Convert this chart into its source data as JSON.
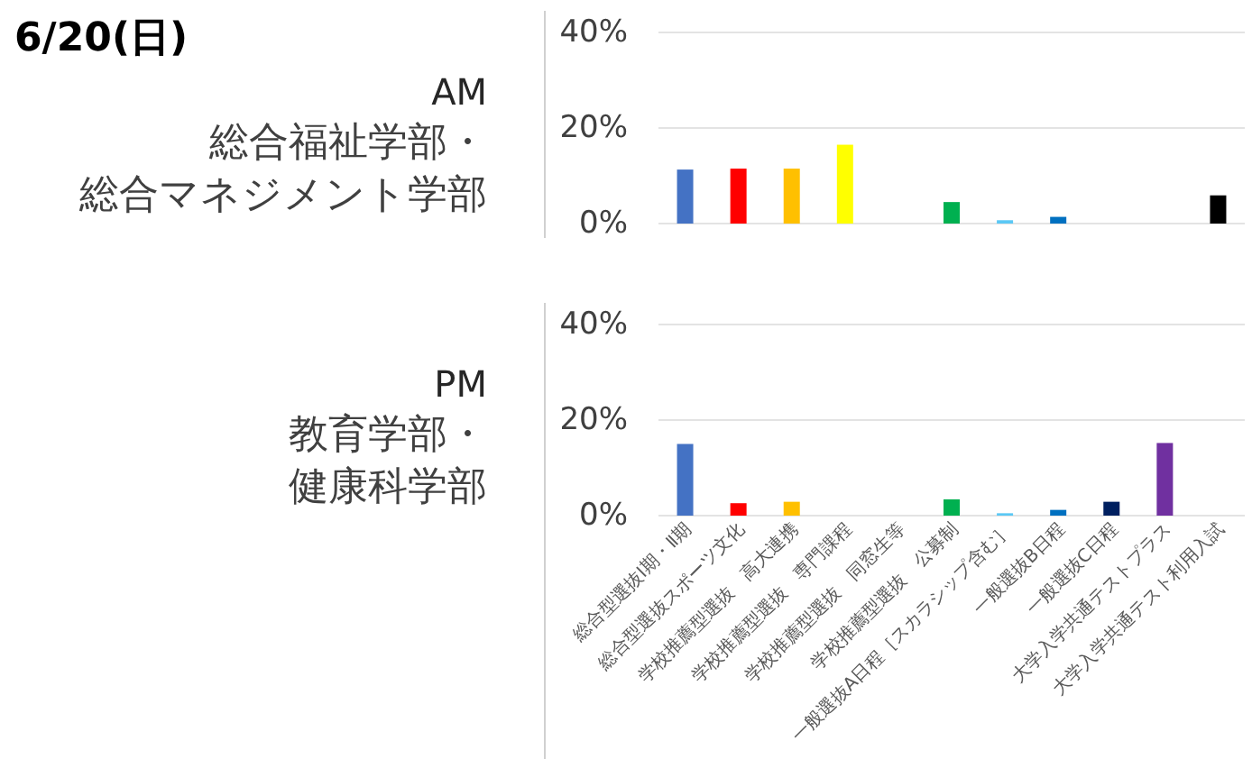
{
  "chart_data": [
    {
      "type": "bar",
      "title": "AM",
      "subtitle": "総合福祉学部・総合マネジメント学部",
      "annotations": [
        "6/20(日)"
      ],
      "categories": [
        null,
        null,
        null,
        null,
        null,
        null,
        null,
        null,
        null,
        null,
        null
      ],
      "values": [
        11.3,
        11.5,
        11.5,
        16.5,
        0,
        4.5,
        0.7,
        1.4,
        0,
        0,
        5.9
      ],
      "colors": [
        "#4472c4",
        "#ff0000",
        "#ffc000",
        "#ffff00",
        "#a5a5a5",
        "#00b050",
        "#5bc8f5",
        "#0070c0",
        "#002060",
        "#7030a0",
        "#000000"
      ],
      "ylim": [
        0,
        40
      ],
      "yticks": [
        {
          "value": 0,
          "label": "0%"
        },
        {
          "value": 20,
          "label": "20%"
        },
        {
          "value": 40,
          "label": "40%"
        }
      ],
      "grid": "y"
    },
    {
      "type": "bar",
      "title": "PM",
      "subtitle": "教育学部・健康科学部",
      "categories": [
        "総合型選抜Ⅰ期・Ⅱ期",
        "総合型選抜スポーツ文化",
        "学校推薦型選抜　高大連携",
        "学校推薦型選抜　専門課程",
        "学校推薦型選抜　同窓生等",
        "学校推薦型選抜　公募制",
        "一般選抜A日程［スカラシップ含む］",
        "一般選抜B日程",
        "一般選抜C日程",
        "大学入学共通テストプラス",
        "大学入学共通テスト利用入試"
      ],
      "values": [
        15.0,
        2.6,
        2.9,
        0,
        0,
        3.4,
        0.5,
        1.2,
        2.9,
        15.2,
        0
      ],
      "colors": [
        "#4472c4",
        "#ff0000",
        "#ffc000",
        "#ffff00",
        "#a5a5a5",
        "#00b050",
        "#5bc8f5",
        "#0070c0",
        "#002060",
        "#7030a0",
        "#000000"
      ],
      "ylim": [
        0,
        40
      ],
      "yticks": [
        {
          "value": 0,
          "label": "0%"
        },
        {
          "value": 20,
          "label": "20%"
        },
        {
          "value": 40,
          "label": "40%"
        }
      ],
      "grid": "y"
    }
  ]
}
